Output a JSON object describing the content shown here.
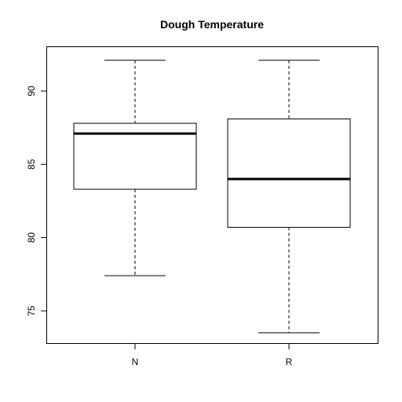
{
  "chart_data": {
    "type": "boxplot",
    "title": "Dough Temperature",
    "xlabel": "",
    "ylabel": "",
    "categories": [
      "N",
      "R"
    ],
    "boxes": [
      {
        "category": "N",
        "whisker_low": 77.4,
        "q1": 83.3,
        "median": 87.1,
        "q3": 87.8,
        "whisker_high": 92.1
      },
      {
        "category": "R",
        "whisker_low": 73.5,
        "q1": 80.7,
        "median": 84.0,
        "q3": 88.1,
        "whisker_high": 92.1
      }
    ],
    "y_ticks": [
      75,
      80,
      85,
      90
    ],
    "ylim": [
      72.8,
      93.0
    ],
    "grid": false,
    "legend": "none"
  }
}
